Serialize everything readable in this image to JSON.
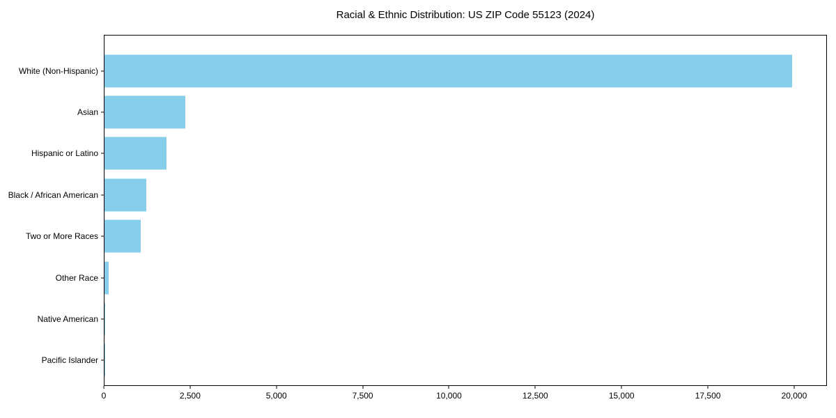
{
  "figure": {
    "background": "#ffffff",
    "spine_color": "#000000",
    "text_color": "#000000"
  },
  "chart_data": {
    "type": "bar",
    "orientation": "horizontal",
    "title": "Racial & Ethnic Distribution: US ZIP Code 55123 (2024)",
    "xlabel": "",
    "ylabel": "",
    "grid": false,
    "bar_color": "#87CEEB",
    "xlim": [
      0,
      20950
    ],
    "categories": [
      "White (Non-Hispanic)",
      "Asian",
      "Hispanic or Latino",
      "Black / African American",
      "Two or More Races",
      "Other Race",
      "Native American",
      "Pacific Islander"
    ],
    "values": [
      19950,
      2350,
      1800,
      1210,
      1050,
      115,
      30,
      10
    ],
    "xticks": [
      {
        "value": 0,
        "label": "0"
      },
      {
        "value": 2500,
        "label": "2,500"
      },
      {
        "value": 5000,
        "label": "5,000"
      },
      {
        "value": 7500,
        "label": "7,500"
      },
      {
        "value": 10000,
        "label": "10,000"
      },
      {
        "value": 12500,
        "label": "12,500"
      },
      {
        "value": 15000,
        "label": "15,000"
      },
      {
        "value": 17500,
        "label": "17,500"
      },
      {
        "value": 20000,
        "label": "20,000"
      }
    ]
  }
}
